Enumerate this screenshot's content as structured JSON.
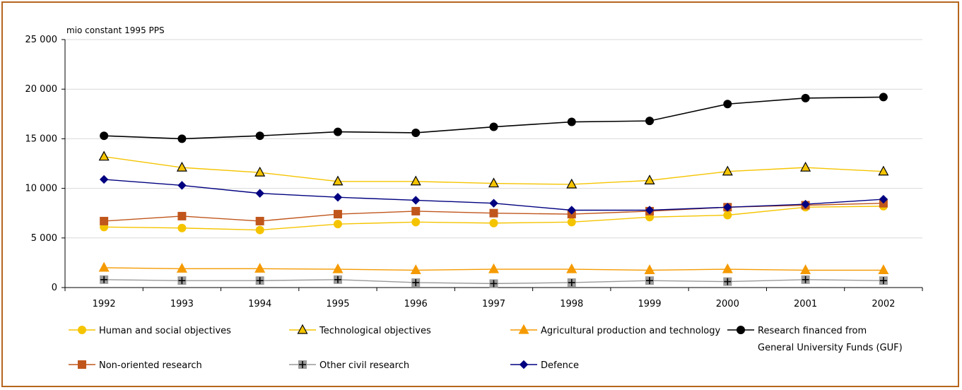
{
  "chart_data": {
    "type": "line",
    "unit_label": "mio constant 1995 PPS",
    "categories": [
      "1992",
      "1993",
      "1994",
      "1995",
      "1996",
      "1997",
      "1998",
      "1999",
      "2000",
      "2001",
      "2002"
    ],
    "ylim": [
      0,
      25000
    ],
    "yticks": [
      0,
      5000,
      10000,
      15000,
      20000,
      25000
    ],
    "ytick_labels": [
      "0",
      "5 000",
      "10 000",
      "15 000",
      "20 000",
      "25 000"
    ],
    "grid": true,
    "legend_position": "bottom",
    "series": [
      {
        "name": "Human and social objectives",
        "marker": "circle",
        "line_color": "#f5c400",
        "marker_fill": "#f5c400",
        "marker_stroke": "#f5c400",
        "values": [
          6100,
          6000,
          5800,
          6400,
          6600,
          6500,
          6600,
          7100,
          7300,
          8100,
          8200
        ]
      },
      {
        "name": "Technological objectives",
        "marker": "triangle",
        "line_color": "#f5c400",
        "marker_fill": "#f5c400",
        "marker_stroke": "#000000",
        "values": [
          13200,
          12100,
          11600,
          10700,
          10700,
          10500,
          10400,
          10800,
          11700,
          12100,
          11700
        ]
      },
      {
        "name": "Agricultural production and technology",
        "marker": "triangle",
        "line_color": "#f59a00",
        "marker_fill": "#f59a00",
        "marker_stroke": "#f59a00",
        "values": [
          2000,
          1900,
          1900,
          1850,
          1750,
          1850,
          1850,
          1750,
          1850,
          1750,
          1750
        ]
      },
      {
        "name": "Research financed from General University Funds (GUF)",
        "name_lines": [
          "Research financed from",
          "General University Funds (GUF)"
        ],
        "marker": "circle",
        "line_color": "#000000",
        "marker_fill": "#000000",
        "marker_stroke": "#000000",
        "values": [
          15300,
          15000,
          15300,
          15700,
          15600,
          16200,
          16700,
          16800,
          18500,
          19100,
          19200
        ]
      },
      {
        "name": "Non-oriented research",
        "marker": "square",
        "line_color": "#c0561c",
        "marker_fill": "#c0561c",
        "marker_stroke": "#c0561c",
        "values": [
          6700,
          7200,
          6700,
          7400,
          7700,
          7500,
          7400,
          7700,
          8100,
          8300,
          8500
        ]
      },
      {
        "name": "Other civil research",
        "marker": "plus",
        "line_color": "#999999",
        "marker_fill": "#999999",
        "marker_stroke": "#000000",
        "values": [
          800,
          700,
          700,
          800,
          500,
          400,
          500,
          700,
          600,
          800,
          700
        ]
      },
      {
        "name": "Defence",
        "marker": "diamond",
        "line_color": "#000080",
        "marker_fill": "#000080",
        "marker_stroke": "#000080",
        "values": [
          10900,
          10300,
          9500,
          9100,
          8800,
          8500,
          7800,
          7800,
          8100,
          8400,
          8900
        ]
      }
    ]
  }
}
